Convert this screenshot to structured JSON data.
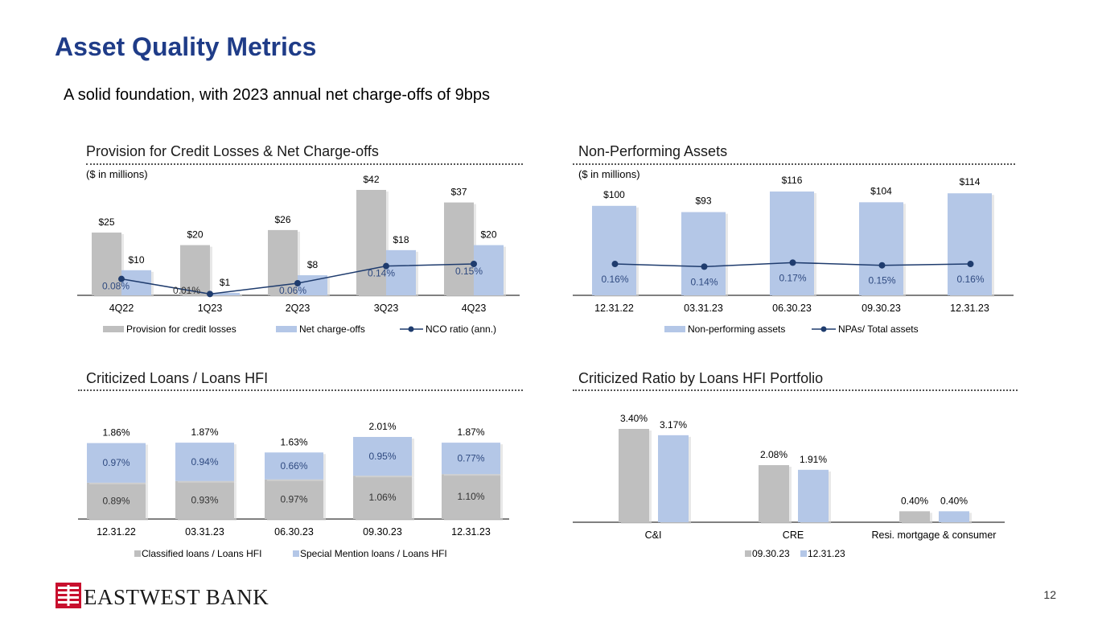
{
  "title": "Asset Quality Metrics",
  "subtitle": "A solid foundation, with 2023 annual net charge-offs of 9bps",
  "page_number": "12",
  "brand": {
    "name": "EASTWEST BANK",
    "color": "#c8102e"
  },
  "colors": {
    "title": "#1f3c88",
    "gray": "#bfbfbf",
    "blue": "#b4c7e7",
    "line": "#1f3c6e"
  },
  "panels": {
    "provision": {
      "title": "Provision for Credit Losses & Net Charge-offs",
      "note": "($ in millions)"
    },
    "npa": {
      "title": "Non-Performing Assets",
      "note": "($ in millions)"
    },
    "criticized": {
      "title": "Criticized Loans / Loans HFI"
    },
    "portfolio": {
      "title": "Criticized Ratio by Loans HFI Portfolio"
    }
  },
  "chart_data": [
    {
      "id": "provision",
      "type": "bar",
      "title": "Provision for Credit Losses & Net Charge-offs",
      "categories": [
        "4Q22",
        "1Q23",
        "2Q23",
        "3Q23",
        "4Q23"
      ],
      "series": [
        {
          "name": "Provision for credit losses",
          "values": [
            25,
            20,
            26,
            42,
            37
          ],
          "labels": [
            "$25",
            "$20",
            "$26",
            "$42",
            "$37"
          ]
        },
        {
          "name": "Net charge-offs",
          "values": [
            10,
            1,
            8,
            18,
            20
          ],
          "labels": [
            "$10",
            "$1",
            "$8",
            "$18",
            "$20"
          ]
        }
      ],
      "line": {
        "name": "NCO ratio (ann.)",
        "values": [
          0.08,
          0.01,
          0.06,
          0.14,
          0.15
        ],
        "labels": [
          "0.08%",
          "0.01%",
          "0.06%",
          "0.14%",
          "0.15%"
        ]
      },
      "legend": [
        "Provision for credit losses",
        "Net charge-offs",
        "NCO ratio (ann.)"
      ]
    },
    {
      "id": "npa",
      "type": "bar",
      "title": "Non-Performing Assets",
      "categories": [
        "12.31.22",
        "03.31.23",
        "06.30.23",
        "09.30.23",
        "12.31.23"
      ],
      "series": [
        {
          "name": "Non-performing assets",
          "values": [
            100,
            93,
            116,
            104,
            114
          ],
          "labels": [
            "$100",
            "$93",
            "$116",
            "$104",
            "$114"
          ]
        }
      ],
      "line": {
        "name": "NPAs/ Total assets",
        "values": [
          0.16,
          0.14,
          0.17,
          0.15,
          0.16
        ],
        "labels": [
          "0.16%",
          "0.14%",
          "0.17%",
          "0.15%",
          "0.16%"
        ]
      },
      "legend": [
        "Non-performing assets",
        "NPAs/ Total assets"
      ]
    },
    {
      "id": "criticized",
      "type": "stacked-bar",
      "title": "Criticized Loans / Loans HFI",
      "categories": [
        "12.31.22",
        "03.31.23",
        "06.30.23",
        "09.30.23",
        "12.31.23"
      ],
      "series": [
        {
          "name": "Classified loans / Loans HFI",
          "values": [
            0.89,
            0.93,
            0.97,
            1.06,
            1.1
          ],
          "labels": [
            "0.89%",
            "0.93%",
            "0.97%",
            "1.06%",
            "1.10%"
          ]
        },
        {
          "name": "Special Mention loans / Loans HFI",
          "values": [
            0.97,
            0.94,
            0.66,
            0.95,
            0.77
          ],
          "labels": [
            "0.97%",
            "0.94%",
            "0.66%",
            "0.95%",
            "0.77%"
          ]
        }
      ],
      "totals": [
        "1.86%",
        "1.87%",
        "1.63%",
        "2.01%",
        "1.87%"
      ],
      "legend": [
        "Classified loans / Loans HFI",
        "Special Mention loans / Loans HFI"
      ]
    },
    {
      "id": "portfolio",
      "type": "bar",
      "title": "Criticized Ratio by Loans HFI Portfolio",
      "categories": [
        "C&I",
        "CRE",
        "Resi. mortgage & consumer"
      ],
      "series": [
        {
          "name": "09.30.23",
          "values": [
            3.4,
            2.08,
            0.4
          ],
          "labels": [
            "3.40%",
            "2.08%",
            "0.40%"
          ]
        },
        {
          "name": "12.31.23",
          "values": [
            3.17,
            1.91,
            0.4
          ],
          "labels": [
            "3.17%",
            "1.91%",
            "0.40%"
          ]
        }
      ],
      "legend": [
        "09.30.23",
        "12.31.23"
      ]
    }
  ]
}
